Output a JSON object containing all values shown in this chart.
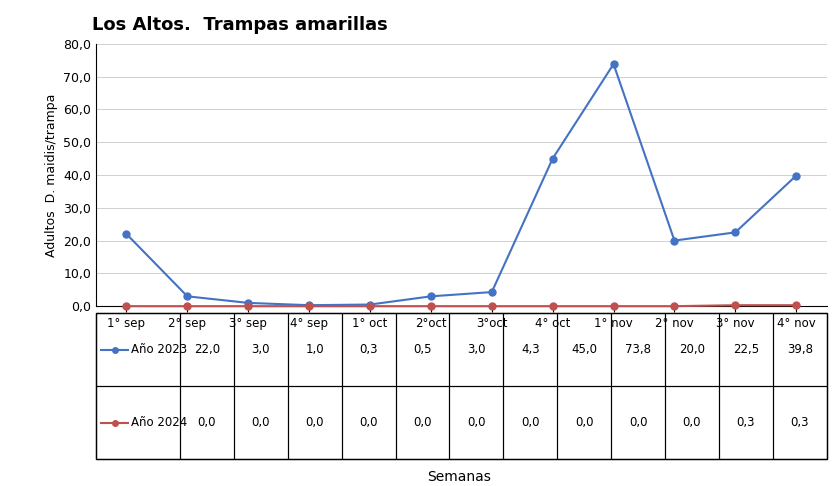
{
  "title": "Los Altos.  Trampas amarillas",
  "xlabel": "Semanas",
  "ylabel": "Adultos  D. maidis/trampa",
  "categories": [
    "1° sep",
    "2° sep",
    "3° sep",
    "4° sep",
    "1° oct",
    "2°oct",
    "3°oct",
    "4° oct",
    "1° nov",
    "2° nov",
    "3° nov",
    "4° nov"
  ],
  "series_2023": [
    22.0,
    3.0,
    1.0,
    0.3,
    0.5,
    3.0,
    4.3,
    45.0,
    73.8,
    20.0,
    22.5,
    39.8
  ],
  "series_2024": [
    0.0,
    0.0,
    0.0,
    0.0,
    0.0,
    0.0,
    0.0,
    0.0,
    0.0,
    0.0,
    0.3,
    0.3
  ],
  "color_2023": "#4472C4",
  "color_2024": "#C0504D",
  "label_2023": "Año 2023",
  "label_2024": "Año 2024",
  "ylim": [
    0,
    80
  ],
  "yticks": [
    0.0,
    10.0,
    20.0,
    30.0,
    40.0,
    50.0,
    60.0,
    70.0,
    80.0
  ],
  "marker": "o",
  "table_2023_vals": [
    "22,0",
    "3,0",
    "1,0",
    "0,3",
    "0,5",
    "3,0",
    "4,3",
    "45,0",
    "73,8",
    "20,0",
    "22,5",
    "39,8"
  ],
  "table_2024_vals": [
    "0,0",
    "0,0",
    "0,0",
    "0,0",
    "0,0",
    "0,0",
    "0,0",
    "0,0",
    "0,0",
    "0,0",
    "0,3",
    "0,3"
  ]
}
